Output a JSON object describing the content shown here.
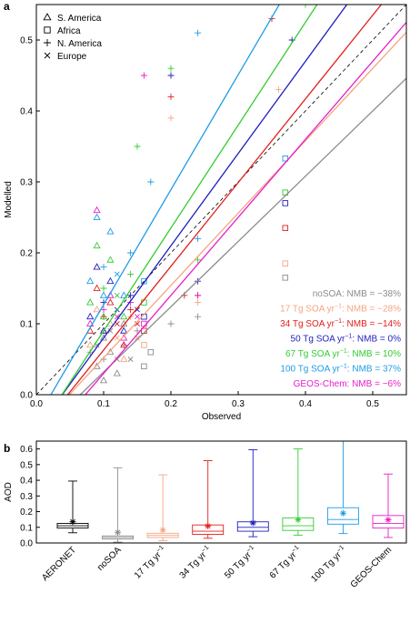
{
  "panels": {
    "a": "a",
    "b": "b"
  },
  "colors": {
    "noSOA": "#8c8c8c",
    "t17": "#f4a582",
    "t34": "#e0201b",
    "t50": "#1f1fbf",
    "t67": "#33cc33",
    "t100": "#1e9be6",
    "geos": "#e61fc8",
    "aeronet": "#000000"
  },
  "chart_data": [
    {
      "panel": "a",
      "type": "scatter",
      "xlabel": "Observed",
      "ylabel": "Modelled",
      "xlim": [
        0.0,
        0.55
      ],
      "ylim": [
        0.0,
        0.55
      ],
      "xticks": [
        "0.0",
        "0.1",
        "0.2",
        "0.3",
        "0.4",
        "0.5"
      ],
      "yticks": [
        "0.0",
        "0.1",
        "0.2",
        "0.3",
        "0.4",
        "0.5"
      ],
      "one_to_one_line": "dashed",
      "legend_markers": [
        {
          "symbol": "triangle",
          "label": "S. America"
        },
        {
          "symbol": "square",
          "label": "Africa"
        },
        {
          "symbol": "plus",
          "label": "N. America"
        },
        {
          "symbol": "cross",
          "label": "Europe"
        }
      ],
      "series": [
        {
          "key": "noSOA",
          "label_main": "noSOA: NMB = −38%",
          "label_sup": "",
          "label_rest": "",
          "slope": 0.92,
          "intercept": -0.06,
          "points": [
            [
              0.09,
              0.04,
              "triangle"
            ],
            [
              0.1,
              0.05,
              "plus"
            ],
            [
              0.11,
              0.06,
              "triangle"
            ],
            [
              0.12,
              0.05,
              "cross"
            ],
            [
              0.13,
              0.07,
              "plus"
            ],
            [
              0.1,
              0.08,
              "triangle"
            ],
            [
              0.14,
              0.05,
              "cross"
            ],
            [
              0.12,
              0.03,
              "triangle"
            ],
            [
              0.08,
              0.06,
              "plus"
            ],
            [
              0.15,
              0.09,
              "plus"
            ],
            [
              0.16,
              0.04,
              "square"
            ],
            [
              0.11,
              0.09,
              "cross"
            ],
            [
              0.2,
              0.1,
              "plus"
            ],
            [
              0.24,
              0.11,
              "plus"
            ],
            [
              0.1,
              0.02,
              "triangle"
            ],
            [
              0.13,
              0.1,
              "triangle"
            ],
            [
              0.09,
              0.07,
              "cross"
            ],
            [
              0.17,
              0.06,
              "square"
            ],
            [
              0.37,
              0.165,
              "square"
            ]
          ]
        },
        {
          "key": "t17",
          "label_main": "17 Tg SOA yr",
          "label_sup": "−1",
          "label_rest": ": NMB = −28%",
          "slope": 1.02,
          "intercept": -0.05,
          "points": [
            [
              0.08,
              0.07,
              "triangle"
            ],
            [
              0.1,
              0.09,
              "plus"
            ],
            [
              0.12,
              0.08,
              "cross"
            ],
            [
              0.11,
              0.1,
              "triangle"
            ],
            [
              0.14,
              0.11,
              "plus"
            ],
            [
              0.16,
              0.07,
              "square"
            ],
            [
              0.2,
              0.39,
              "plus"
            ],
            [
              0.24,
              0.13,
              "plus"
            ],
            [
              0.13,
              0.05,
              "triangle"
            ],
            [
              0.09,
              0.12,
              "triangle"
            ],
            [
              0.15,
              0.08,
              "cross"
            ],
            [
              0.37,
              0.185,
              "square"
            ],
            [
              0.36,
              0.43,
              "plus"
            ]
          ]
        },
        {
          "key": "t34",
          "label_main": "34 Tg SOA yr",
          "label_sup": "−1",
          "label_rest": ": NMB = −14%",
          "slope": 1.18,
          "intercept": -0.055,
          "points": [
            [
              0.08,
              0.09,
              "triangle"
            ],
            [
              0.1,
              0.11,
              "plus"
            ],
            [
              0.12,
              0.1,
              "cross"
            ],
            [
              0.11,
              0.13,
              "triangle"
            ],
            [
              0.14,
              0.12,
              "plus"
            ],
            [
              0.16,
              0.09,
              "square"
            ],
            [
              0.2,
              0.42,
              "plus"
            ],
            [
              0.24,
              0.14,
              "plus"
            ],
            [
              0.13,
              0.07,
              "triangle"
            ],
            [
              0.09,
              0.15,
              "triangle"
            ],
            [
              0.35,
              0.53,
              "plus"
            ],
            [
              0.37,
              0.235,
              "square"
            ],
            [
              0.22,
              0.14,
              "plus"
            ],
            [
              0.15,
              0.1,
              "cross"
            ]
          ]
        },
        {
          "key": "t50",
          "label_main": "50 Tg SOA yr",
          "label_sup": "−1",
          "label_rest": ": NMB = 0%",
          "slope": 1.3,
          "intercept": -0.05,
          "points": [
            [
              0.08,
              0.11,
              "triangle"
            ],
            [
              0.1,
              0.13,
              "plus"
            ],
            [
              0.12,
              0.12,
              "cross"
            ],
            [
              0.11,
              0.16,
              "triangle"
            ],
            [
              0.14,
              0.14,
              "plus"
            ],
            [
              0.16,
              0.11,
              "square"
            ],
            [
              0.2,
              0.45,
              "plus"
            ],
            [
              0.24,
              0.16,
              "plus"
            ],
            [
              0.13,
              0.09,
              "triangle"
            ],
            [
              0.09,
              0.18,
              "triangle"
            ],
            [
              0.38,
              0.5,
              "plus"
            ],
            [
              0.37,
              0.27,
              "square"
            ],
            [
              0.15,
              0.12,
              "cross"
            ],
            [
              0.1,
              0.09,
              "triangle"
            ]
          ]
        },
        {
          "key": "t67",
          "label_main": "67 Tg SOA yr",
          "label_sup": "−1",
          "label_rest": ": NMB = 10%",
          "slope": 1.45,
          "intercept": -0.055,
          "points": [
            [
              0.08,
              0.13,
              "triangle"
            ],
            [
              0.1,
              0.15,
              "plus"
            ],
            [
              0.12,
              0.14,
              "cross"
            ],
            [
              0.11,
              0.19,
              "triangle"
            ],
            [
              0.14,
              0.17,
              "plus"
            ],
            [
              0.16,
              0.13,
              "square"
            ],
            [
              0.2,
              0.46,
              "plus"
            ],
            [
              0.24,
              0.19,
              "plus"
            ],
            [
              0.13,
              0.11,
              "triangle"
            ],
            [
              0.09,
              0.21,
              "triangle"
            ],
            [
              0.4,
              0.55,
              "plus"
            ],
            [
              0.37,
              0.285,
              "square"
            ],
            [
              0.15,
              0.35,
              "plus"
            ],
            [
              0.1,
              0.11,
              "triangle"
            ]
          ]
        },
        {
          "key": "t100",
          "label_main": "100 Tg SOA yr",
          "label_sup": "−1",
          "label_rest": ": NMB = 37%",
          "slope": 1.62,
          "intercept": -0.035,
          "points": [
            [
              0.08,
              0.16,
              "triangle"
            ],
            [
              0.1,
              0.18,
              "plus"
            ],
            [
              0.12,
              0.17,
              "cross"
            ],
            [
              0.11,
              0.23,
              "triangle"
            ],
            [
              0.14,
              0.2,
              "plus"
            ],
            [
              0.16,
              0.16,
              "square"
            ],
            [
              0.24,
              0.51,
              "plus"
            ],
            [
              0.24,
              0.22,
              "plus"
            ],
            [
              0.13,
              0.14,
              "triangle"
            ],
            [
              0.09,
              0.25,
              "triangle"
            ],
            [
              0.37,
              0.333,
              "square"
            ],
            [
              0.17,
              0.3,
              "plus"
            ],
            [
              0.1,
              0.14,
              "triangle"
            ]
          ]
        },
        {
          "key": "geos",
          "label_main": "GEOS-Chem: NMB = −6%",
          "label_sup": "",
          "label_rest": "",
          "slope": 1.1,
          "intercept": -0.08,
          "points": [
            [
              0.08,
              0.1,
              "triangle"
            ],
            [
              0.1,
              0.12,
              "plus"
            ],
            [
              0.12,
              0.11,
              "cross"
            ],
            [
              0.11,
              0.14,
              "triangle"
            ],
            [
              0.14,
              0.13,
              "plus"
            ],
            [
              0.16,
              0.1,
              "square"
            ],
            [
              0.16,
              0.45,
              "plus"
            ],
            [
              0.24,
              0.14,
              "plus"
            ],
            [
              0.13,
              0.08,
              "triangle"
            ],
            [
              0.09,
              0.26,
              "triangle"
            ],
            [
              0.15,
              0.11,
              "cross"
            ]
          ]
        }
      ]
    },
    {
      "panel": "b",
      "type": "box",
      "ylabel": "AOD",
      "ylim": [
        0.0,
        0.65
      ],
      "yticks": [
        "0.0",
        "0.1",
        "0.2",
        "0.3",
        "0.4",
        "0.5",
        "0.6"
      ],
      "boxes": [
        {
          "key": "aeronet",
          "main": "AERONET",
          "sup": "",
          "min": 0.065,
          "q1": 0.095,
          "median": 0.11,
          "q3": 0.125,
          "max": 0.395,
          "mean": 0.135
        },
        {
          "key": "noSOA",
          "main": "noSOA",
          "sup": "",
          "min": 0.005,
          "q1": 0.025,
          "median": 0.035,
          "q3": 0.045,
          "max": 0.48,
          "mean": 0.068
        },
        {
          "key": "t17",
          "main": "17 Tg yr",
          "sup": "−1",
          "min": 0.015,
          "q1": 0.035,
          "median": 0.048,
          "q3": 0.062,
          "max": 0.435,
          "mean": 0.083
        },
        {
          "key": "t34",
          "main": "34 Tg yr",
          "sup": "−1",
          "min": 0.03,
          "q1": 0.055,
          "median": 0.075,
          "q3": 0.115,
          "max": 0.525,
          "mean": 0.108
        },
        {
          "key": "t50",
          "main": "50 Tg yr",
          "sup": "−1",
          "min": 0.04,
          "q1": 0.075,
          "median": 0.1,
          "q3": 0.135,
          "max": 0.595,
          "mean": 0.128
        },
        {
          "key": "t67",
          "main": "67 Tg yr",
          "sup": "−1",
          "min": 0.05,
          "q1": 0.08,
          "median": 0.11,
          "q3": 0.16,
          "max": 0.6,
          "mean": 0.148
        },
        {
          "key": "t100",
          "main": "100 Tg yr",
          "sup": "−1",
          "min": 0.06,
          "q1": 0.12,
          "median": 0.15,
          "q3": 0.225,
          "max": 0.65,
          "mean": 0.19
        },
        {
          "key": "geos",
          "main": "GEOS-Chem",
          "sup": "",
          "min": 0.035,
          "q1": 0.095,
          "median": 0.125,
          "q3": 0.175,
          "max": 0.44,
          "mean": 0.148
        }
      ]
    }
  ]
}
